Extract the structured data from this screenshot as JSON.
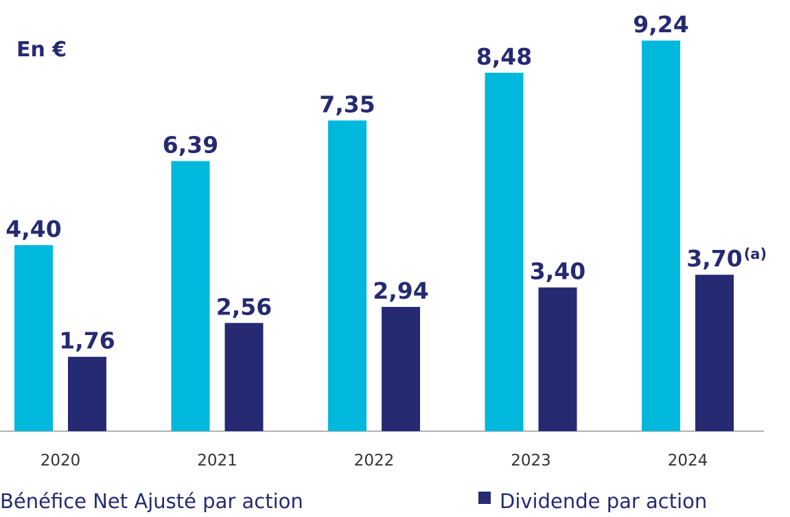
{
  "chart_data": {
    "type": "bar",
    "title": "En €",
    "categories": [
      "2020",
      "2021",
      "2022",
      "2023",
      "2024"
    ],
    "series": [
      {
        "name": "Bénéfice Net Ajusté par action",
        "color": "#00b8dc",
        "values": [
          4.4,
          6.39,
          7.35,
          8.48,
          9.24
        ],
        "value_labels": [
          "4,40",
          "6,39",
          "7,35",
          "8,48",
          "9,24"
        ]
      },
      {
        "name": "Dividende par action",
        "color": "#262a72",
        "values": [
          1.76,
          2.56,
          2.94,
          3.4,
          3.7
        ],
        "value_labels": [
          "1,76",
          "2,56",
          "2,94",
          "3,40",
          "3,70"
        ]
      }
    ],
    "annotation": "(a)",
    "ylim": [
      0,
      10.2
    ]
  }
}
